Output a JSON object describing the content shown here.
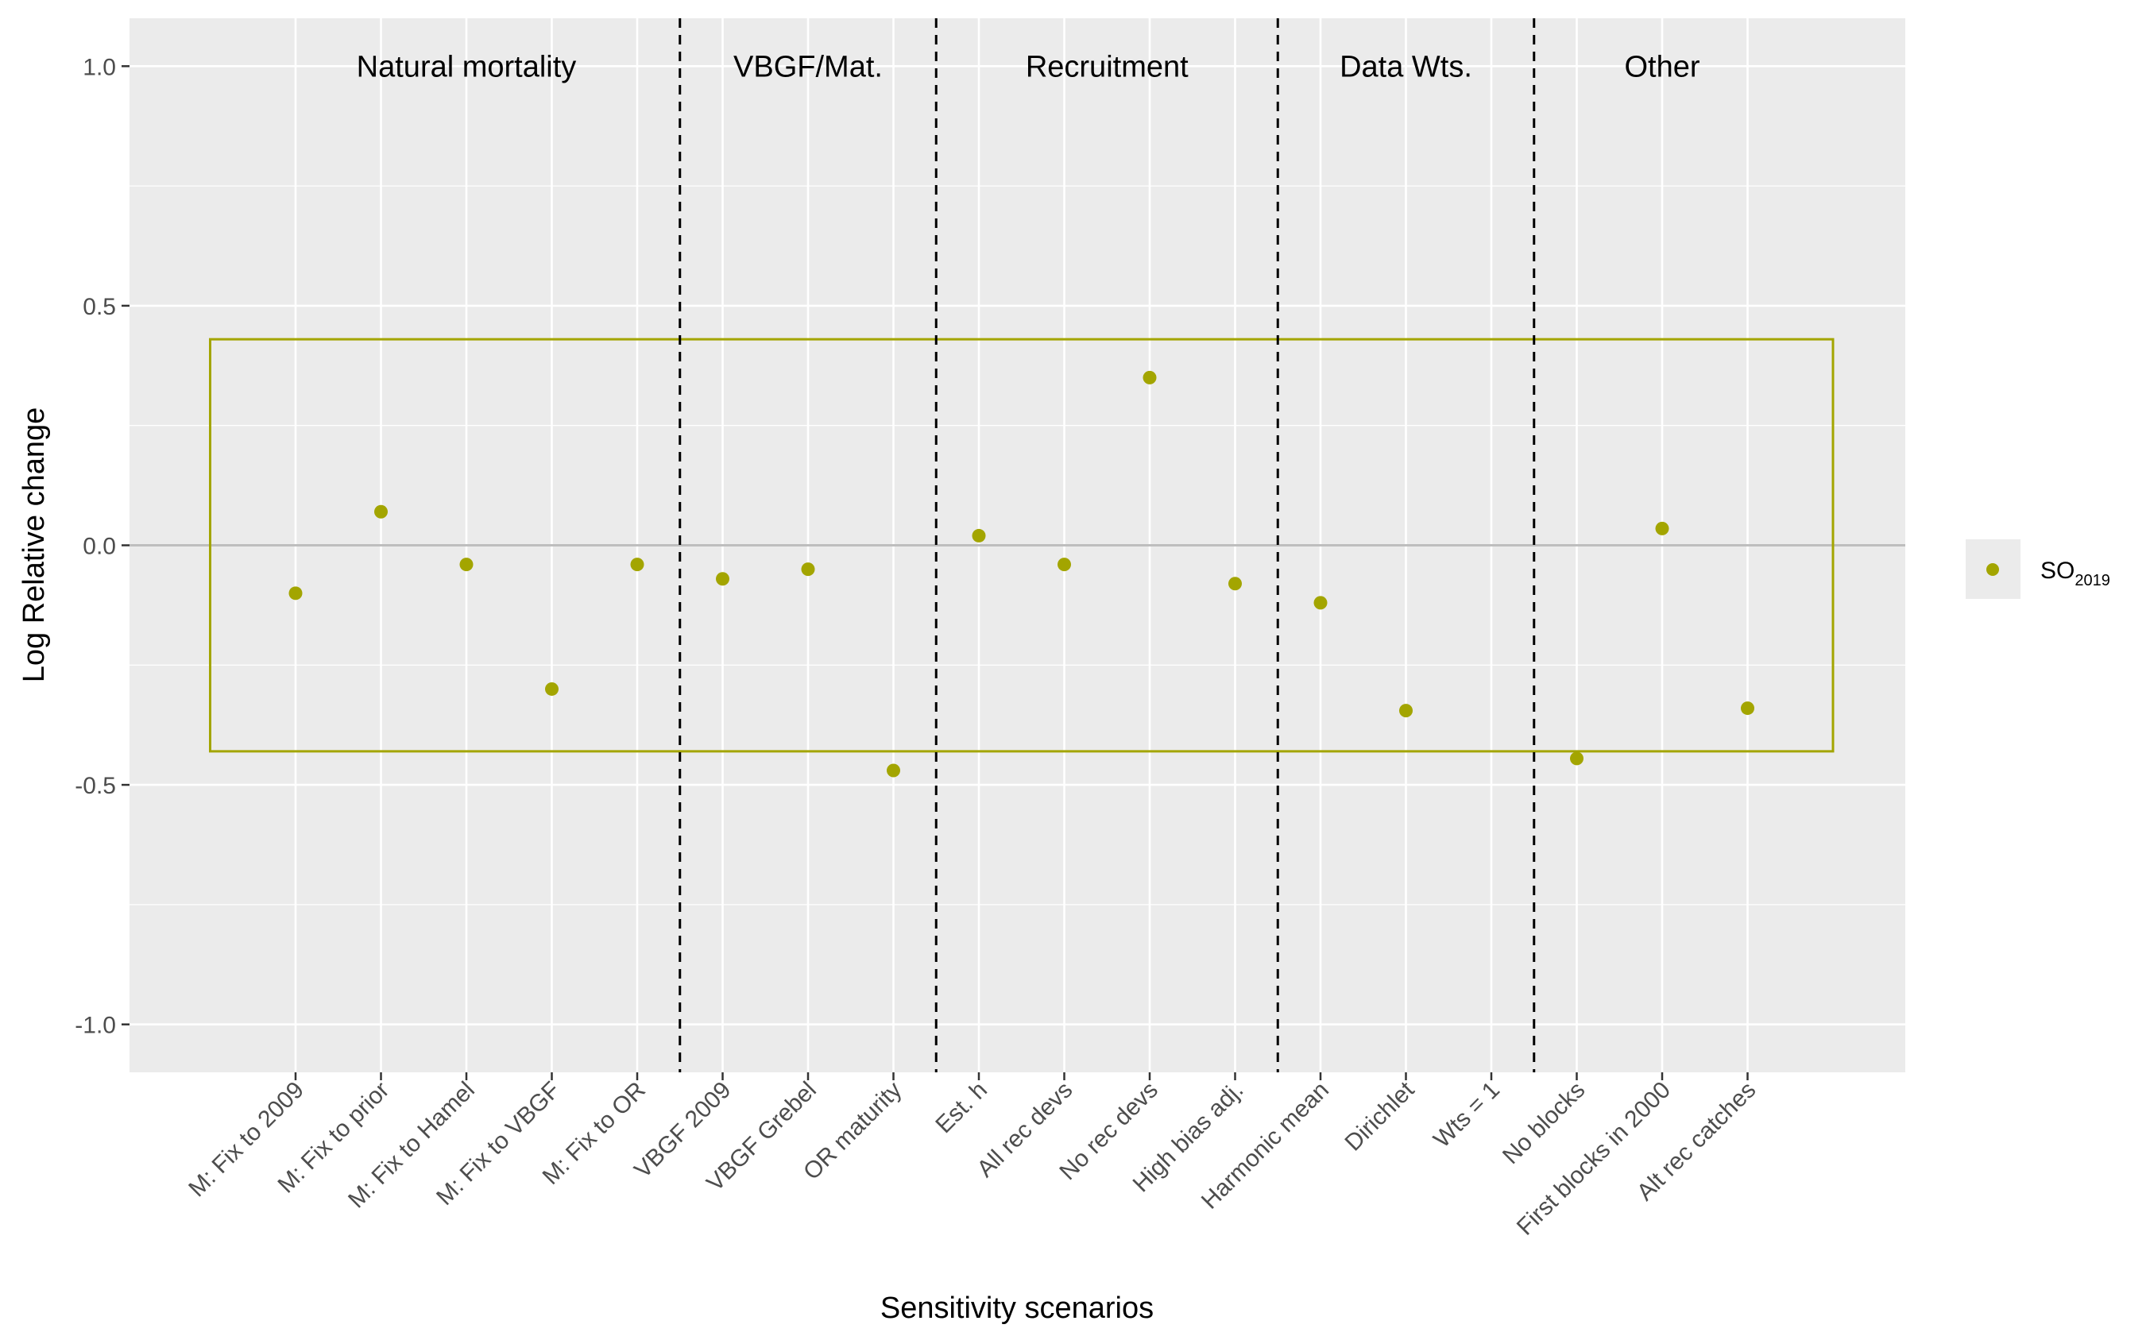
{
  "chart_data": {
    "type": "scatter",
    "xlabel": "Sensitivity scenarios",
    "ylabel": "Log Relative change",
    "ylim": [
      -1.1,
      1.1
    ],
    "yticks": [
      {
        "value": 1.0,
        "label": "1.0"
      },
      {
        "value": 0.5,
        "label": "0.5"
      },
      {
        "value": 0.0,
        "label": "0.0"
      },
      {
        "value": -0.5,
        "label": "-0.5"
      },
      {
        "value": -1.0,
        "label": "-1.0"
      }
    ],
    "grid": true,
    "categories": [
      "M: Fix to 2009",
      "M: Fix to prior",
      "M: Fix to Hamel",
      "M: Fix to VBGF",
      "M: Fix to OR",
      "VBGF 2009",
      "VBGF Grebel",
      "OR maturity",
      "Est. h",
      "All rec devs",
      "No rec devs",
      "High bias adj.",
      "Harmonic mean",
      "Dirichlet",
      "Wts = 1",
      "No blocks",
      "First blocks in 2000",
      "Alt rec catches"
    ],
    "series": [
      {
        "name": "SO2019",
        "label_main": "SO",
        "label_sub": "2019",
        "color": "#A3A500",
        "values": [
          -0.1,
          0.07,
          -0.04,
          -0.3,
          -0.04,
          -0.07,
          -0.05,
          -0.47,
          0.02,
          -0.04,
          0.35,
          -0.08,
          -0.12,
          -0.345,
          null,
          -0.445,
          0.035,
          -0.34
        ]
      }
    ],
    "reference_line": {
      "y": 0,
      "color": "#bebebe"
    },
    "box": {
      "ymin": -0.43,
      "ymax": 0.43,
      "color": "#A3A500"
    },
    "groups": [
      {
        "label": "Natural mortality",
        "start": 1,
        "end": 5
      },
      {
        "label": "VBGF/Mat.",
        "start": 6,
        "end": 8
      },
      {
        "label": "Recruitment",
        "start": 9,
        "end": 12
      },
      {
        "label": "Data Wts.",
        "start": 13,
        "end": 15
      },
      {
        "label": "Other",
        "start": 16,
        "end": 18
      }
    ],
    "legend_position": "right",
    "colors": {
      "panel": "#EBEBEB",
      "grid": "#FFFFFF",
      "point": "#A3A500"
    }
  }
}
